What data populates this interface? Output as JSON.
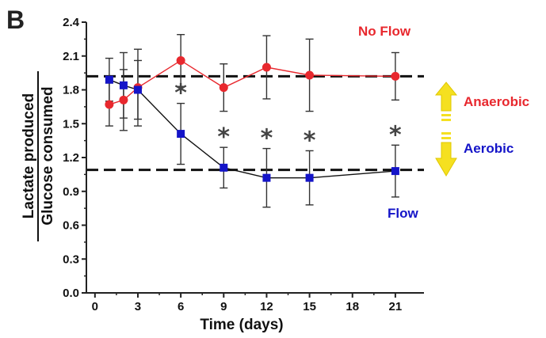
{
  "panel_label": "B",
  "colors": {
    "no_flow": "#e8282e",
    "flow": "#1414c8",
    "arrow_fill": "#f5e020",
    "arrow_stroke": "#e0c800",
    "axis": "#222222",
    "errorbar": "#333333",
    "star": "#444444"
  },
  "annotations": {
    "no_flow_label": "No Flow",
    "flow_label": "Flow",
    "anaerobic_label": "Anaerobic",
    "aerobic_label": "Aerobic",
    "significance_marker": "*",
    "significance_at_x": [
      6,
      9,
      12,
      15,
      21
    ]
  },
  "chart_data": {
    "type": "line",
    "title": "",
    "xlabel": "Time (days)",
    "ylabel_numerator": "Lactate produced",
    "ylabel_denominator": "Glucose consumed",
    "xlim": [
      -0.6,
      23
    ],
    "ylim": [
      0,
      2.4
    ],
    "xticks": [
      0,
      3,
      6,
      9,
      12,
      15,
      18,
      21
    ],
    "yticks": [
      0.0,
      0.3,
      0.6,
      0.9,
      1.2,
      1.5,
      1.8,
      2.1,
      2.4
    ],
    "ytick_labels": [
      "0.0",
      "0.3",
      "0.6",
      "0.9",
      "1.2",
      "1.5",
      "1.8",
      "2.1",
      "2.4"
    ],
    "reference_lines_y": [
      1.92,
      1.09
    ],
    "series": [
      {
        "name": "No Flow",
        "marker": "circle",
        "x": [
          1,
          2,
          3,
          6,
          9,
          12,
          15,
          21
        ],
        "y": [
          1.67,
          1.71,
          1.82,
          2.06,
          1.82,
          2.0,
          1.93,
          1.92
        ],
        "err": [
          0.19,
          0.27,
          0.34,
          0.23,
          0.21,
          0.28,
          0.32,
          0.21
        ]
      },
      {
        "name": "Flow",
        "marker": "square",
        "x": [
          1,
          2,
          3,
          6,
          9,
          12,
          15,
          21
        ],
        "y": [
          1.89,
          1.84,
          1.8,
          1.41,
          1.11,
          1.02,
          1.02,
          1.08
        ],
        "err": [
          0.19,
          0.29,
          0.26,
          0.27,
          0.18,
          0.26,
          0.24,
          0.23
        ]
      }
    ]
  }
}
